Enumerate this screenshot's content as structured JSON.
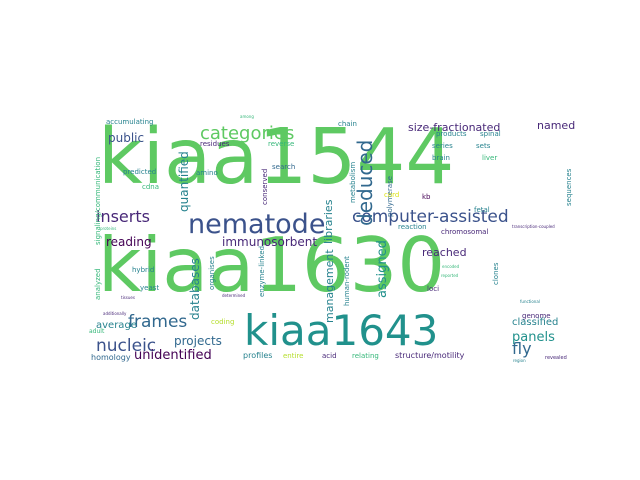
{
  "palette": {
    "green": "#5ec962",
    "teal": "#21918c",
    "blue": "#3b528b",
    "navy": "#31688e",
    "purple": "#440154",
    "dkpurple": "#482878",
    "lime": "#b5de2b",
    "yellow": "#dde318",
    "mint": "#35b779",
    "cyan": "#1f9e89",
    "steel": "#26828e",
    "bg": "#ffffff"
  },
  "words": [
    {
      "text": "kiaa1544",
      "color": "green"
    },
    {
      "text": "kiaa1630",
      "color": "green"
    },
    {
      "text": "kiaa1643",
      "color": "teal"
    },
    {
      "text": "nematode",
      "color": "blue"
    },
    {
      "text": "categories",
      "color": "green"
    },
    {
      "text": "computer-assisted",
      "color": "blue"
    },
    {
      "text": "deduced",
      "color": "navy"
    },
    {
      "text": "inserts",
      "color": "dkpurple"
    },
    {
      "text": "frames",
      "color": "navy"
    },
    {
      "text": "nucleic",
      "color": "blue"
    },
    {
      "text": "fly",
      "color": "navy"
    },
    {
      "text": "panels",
      "color": "teal"
    },
    {
      "text": "immunosorbent",
      "color": "dkpurple"
    },
    {
      "text": "projects",
      "color": "navy"
    },
    {
      "text": "unidentified",
      "color": "purple"
    },
    {
      "text": "public",
      "color": "blue"
    },
    {
      "text": "reading",
      "color": "purple"
    },
    {
      "text": "size-fractionated",
      "color": "dkpurple"
    },
    {
      "text": "named",
      "color": "dkpurple"
    },
    {
      "text": "assigned",
      "color": "teal"
    },
    {
      "text": "reached",
      "color": "dkpurple"
    },
    {
      "text": "libraries",
      "color": "steel"
    },
    {
      "text": "management",
      "color": "steel"
    },
    {
      "text": "databases",
      "color": "steel"
    },
    {
      "text": "quantified",
      "color": "steel"
    },
    {
      "text": "classified",
      "color": "steel"
    },
    {
      "text": "average",
      "color": "steel"
    },
    {
      "text": "homology",
      "color": "navy"
    },
    {
      "text": "profiles",
      "color": "steel"
    },
    {
      "text": "structure/motility",
      "color": "dkpurple"
    },
    {
      "text": "accumulating",
      "color": "steel"
    },
    {
      "text": "chain",
      "color": "steel"
    },
    {
      "text": "residues",
      "color": "dkpurple"
    },
    {
      "text": "reverse",
      "color": "mint"
    },
    {
      "text": "search",
      "color": "navy"
    },
    {
      "text": "products",
      "color": "steel"
    },
    {
      "text": "spinal",
      "color": "steel"
    },
    {
      "text": "series",
      "color": "steel"
    },
    {
      "text": "sets",
      "color": "steel"
    },
    {
      "text": "brain",
      "color": "steel"
    },
    {
      "text": "liver",
      "color": "mint"
    },
    {
      "text": "kb",
      "color": "purple"
    },
    {
      "text": "fetal",
      "color": "steel"
    },
    {
      "text": "polymerase",
      "color": "navy"
    },
    {
      "text": "metabolism",
      "color": "steel"
    },
    {
      "text": "conserved",
      "color": "dkpurple"
    },
    {
      "text": "amino",
      "color": "steel"
    },
    {
      "text": "predicted",
      "color": "steel"
    },
    {
      "text": "cdna",
      "color": "mint"
    },
    {
      "text": "hybrid",
      "color": "steel"
    },
    {
      "text": "yeast",
      "color": "steel"
    },
    {
      "text": "adult",
      "color": "mint"
    },
    {
      "text": "organises",
      "color": "steel"
    },
    {
      "text": "enzyme-linked",
      "color": "steel"
    },
    {
      "text": "coding",
      "color": "lime"
    },
    {
      "text": "entire",
      "color": "lime"
    },
    {
      "text": "acid",
      "color": "dkpurple"
    },
    {
      "text": "relating",
      "color": "mint"
    },
    {
      "text": "human-rodent",
      "color": "steel"
    },
    {
      "text": "reaction",
      "color": "steel"
    },
    {
      "text": "chromosomal",
      "color": "dkpurple"
    },
    {
      "text": "loci",
      "color": "dkpurple"
    },
    {
      "text": "clones",
      "color": "steel"
    },
    {
      "text": "genome",
      "color": "dkpurple"
    },
    {
      "text": "sequences",
      "color": "steel"
    },
    {
      "text": "cord",
      "color": "yellow"
    },
    {
      "text": "analyzed",
      "color": "mint"
    },
    {
      "text": "signaling/communication",
      "color": "mint"
    },
    {
      "text": "transcription-coupled",
      "color": "dkpurple"
    },
    {
      "text": "revealed",
      "color": "dkpurple"
    },
    {
      "text": "tissues",
      "color": "dkpurple"
    },
    {
      "text": "region",
      "color": "steel"
    },
    {
      "text": "determined",
      "color": "dkpurple"
    },
    {
      "text": "additionally",
      "color": "dkpurple"
    },
    {
      "text": "functional",
      "color": "steel"
    },
    {
      "text": "encoded",
      "color": "mint"
    },
    {
      "text": "reported",
      "color": "mint"
    },
    {
      "text": "proteins",
      "color": "mint"
    },
    {
      "text": "among",
      "color": "mint"
    }
  ]
}
